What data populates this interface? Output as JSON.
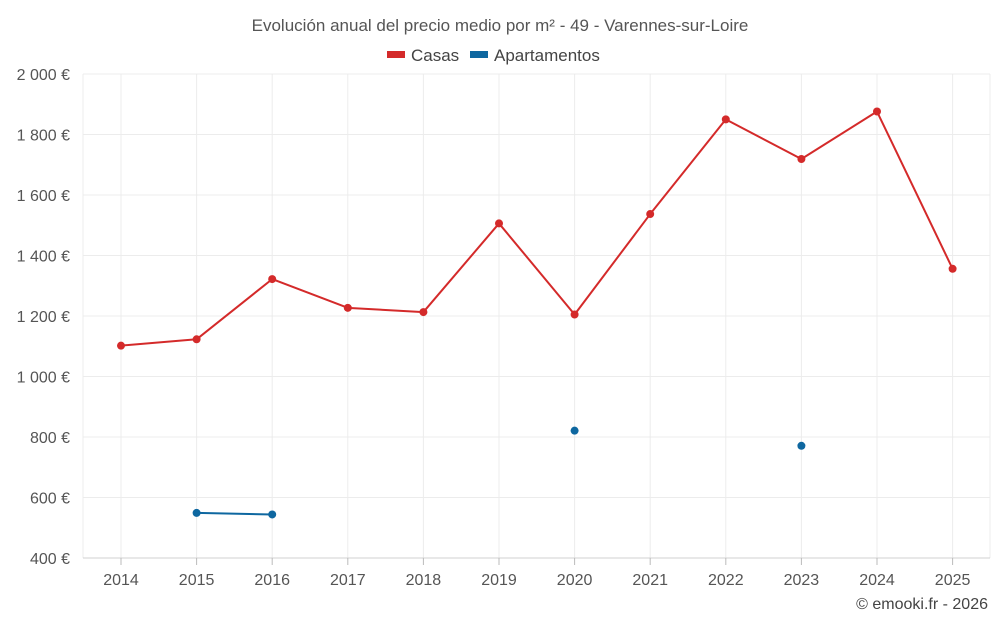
{
  "chart_data": {
    "type": "line",
    "title": "Evolución anual del precio medio por m² - 49 - Varennes-sur-Loire",
    "categories": [
      "2014",
      "2015",
      "2016",
      "2017",
      "2018",
      "2019",
      "2020",
      "2021",
      "2022",
      "2023",
      "2024",
      "2025"
    ],
    "y_ticks": [
      "400 €",
      "600 €",
      "800 €",
      "1 000 €",
      "1 200 €",
      "1 400 €",
      "1 600 €",
      "1 800 €",
      "2 000 €"
    ],
    "y_tick_values": [
      400,
      600,
      800,
      1000,
      1200,
      1400,
      1600,
      1800,
      2000
    ],
    "ylim": [
      400,
      2000
    ],
    "grid": true,
    "legend_position": "top",
    "series": [
      {
        "name": "Casas",
        "color": "#d42a2a",
        "values": [
          1102,
          1123,
          1322,
          1227,
          1213,
          1506,
          1205,
          1537,
          1850,
          1719,
          1876,
          1356
        ]
      },
      {
        "name": "Apartamentos",
        "color": "#0e67a0",
        "values": [
          null,
          549,
          544,
          null,
          null,
          null,
          821,
          null,
          null,
          771,
          null,
          null
        ]
      }
    ],
    "credit": "© emooki.fr - 2026"
  }
}
